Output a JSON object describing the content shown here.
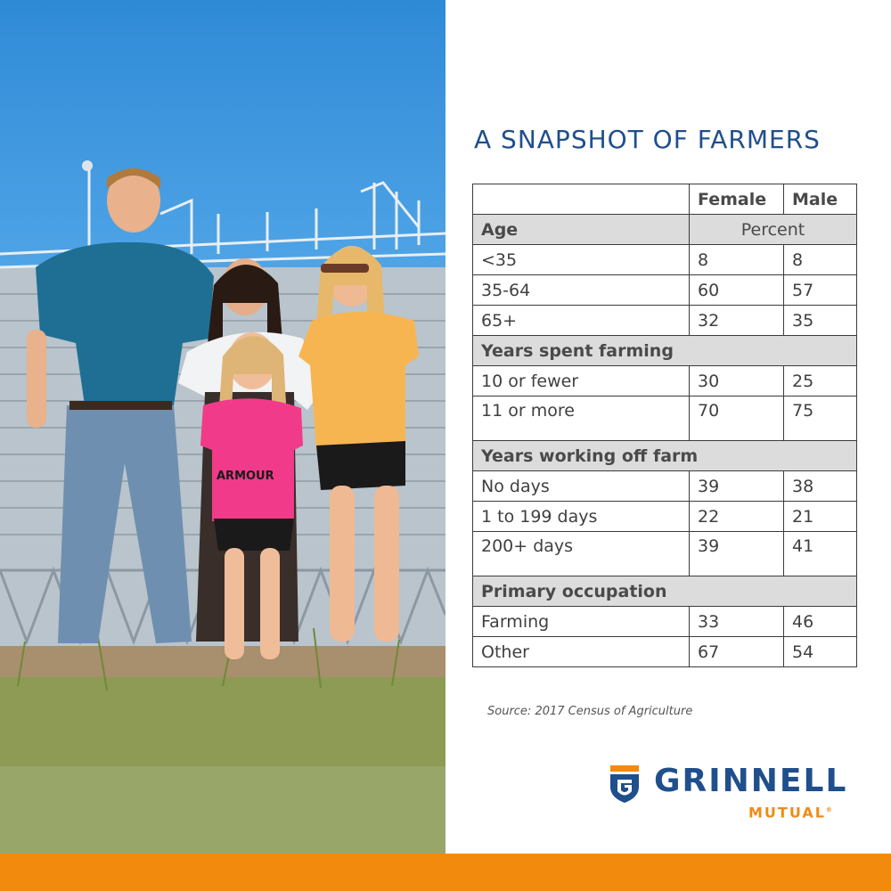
{
  "title": "A SNAPSHOT OF FARMERS",
  "table": {
    "col_headers": [
      "Female",
      "Male"
    ],
    "unit_label": "Percent",
    "sections": [
      {
        "label": "Age",
        "rows": [
          {
            "label": "<35",
            "female": "8",
            "male": "8"
          },
          {
            "label": "35-64",
            "female": "60",
            "male": "57"
          },
          {
            "label": "65+",
            "female": "32",
            "male": "35"
          }
        ]
      },
      {
        "label": "Years spent farming",
        "rows": [
          {
            "label": "10 or fewer",
            "female": "30",
            "male": "25"
          },
          {
            "label": "11 or more",
            "female": "70",
            "male": "75"
          }
        ]
      },
      {
        "label": "Years working off farm",
        "rows": [
          {
            "label": "No days",
            "female": "39",
            "male": "38"
          },
          {
            "label": "1 to 199 days",
            "female": "22",
            "male": "21"
          },
          {
            "label": "200+ days",
            "female": "39",
            "male": "41"
          }
        ]
      },
      {
        "label": "Primary occupation",
        "rows": [
          {
            "label": "Farming",
            "female": "33",
            "male": "46"
          },
          {
            "label": "Other",
            "female": "67",
            "male": "54"
          }
        ]
      }
    ]
  },
  "source": "Source: 2017 Census of Agriculture",
  "logo": {
    "name": "GRINNELL",
    "subname": "MUTUAL",
    "mark": "®"
  },
  "photo": {
    "shirt_text": "ARMOUR"
  },
  "colors": {
    "brand_blue": "#1f4f8c",
    "brand_orange": "#f28a0e",
    "section_fill": "#dcdcdc"
  }
}
